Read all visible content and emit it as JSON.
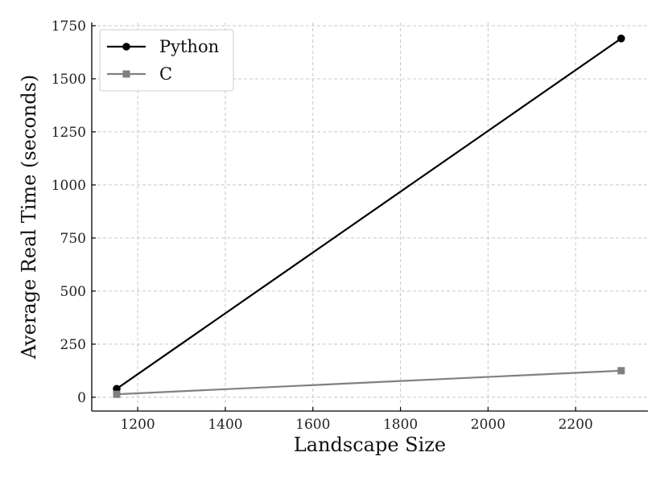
{
  "chart_data": {
    "type": "line",
    "title": "",
    "xlabel": "Landscape Size",
    "ylabel": "Average Real Time (seconds)",
    "xlim": [
      1095,
      2365
    ],
    "ylim": [
      -65,
      1765
    ],
    "x_ticks": [
      1200,
      1400,
      1600,
      1800,
      2000,
      2200
    ],
    "y_ticks": [
      0,
      250,
      500,
      750,
      1000,
      1250,
      1500,
      1750
    ],
    "grid": true,
    "legend_position": "top-left",
    "series": [
      {
        "name": "Python",
        "color": "#000000",
        "marker": "circle",
        "points": [
          {
            "x": 1152,
            "y": 40
          },
          {
            "x": 2304,
            "y": 1690
          }
        ]
      },
      {
        "name": "C",
        "color": "#808080",
        "marker": "square",
        "points": [
          {
            "x": 1152,
            "y": 14
          },
          {
            "x": 2304,
            "y": 125
          }
        ]
      }
    ]
  }
}
